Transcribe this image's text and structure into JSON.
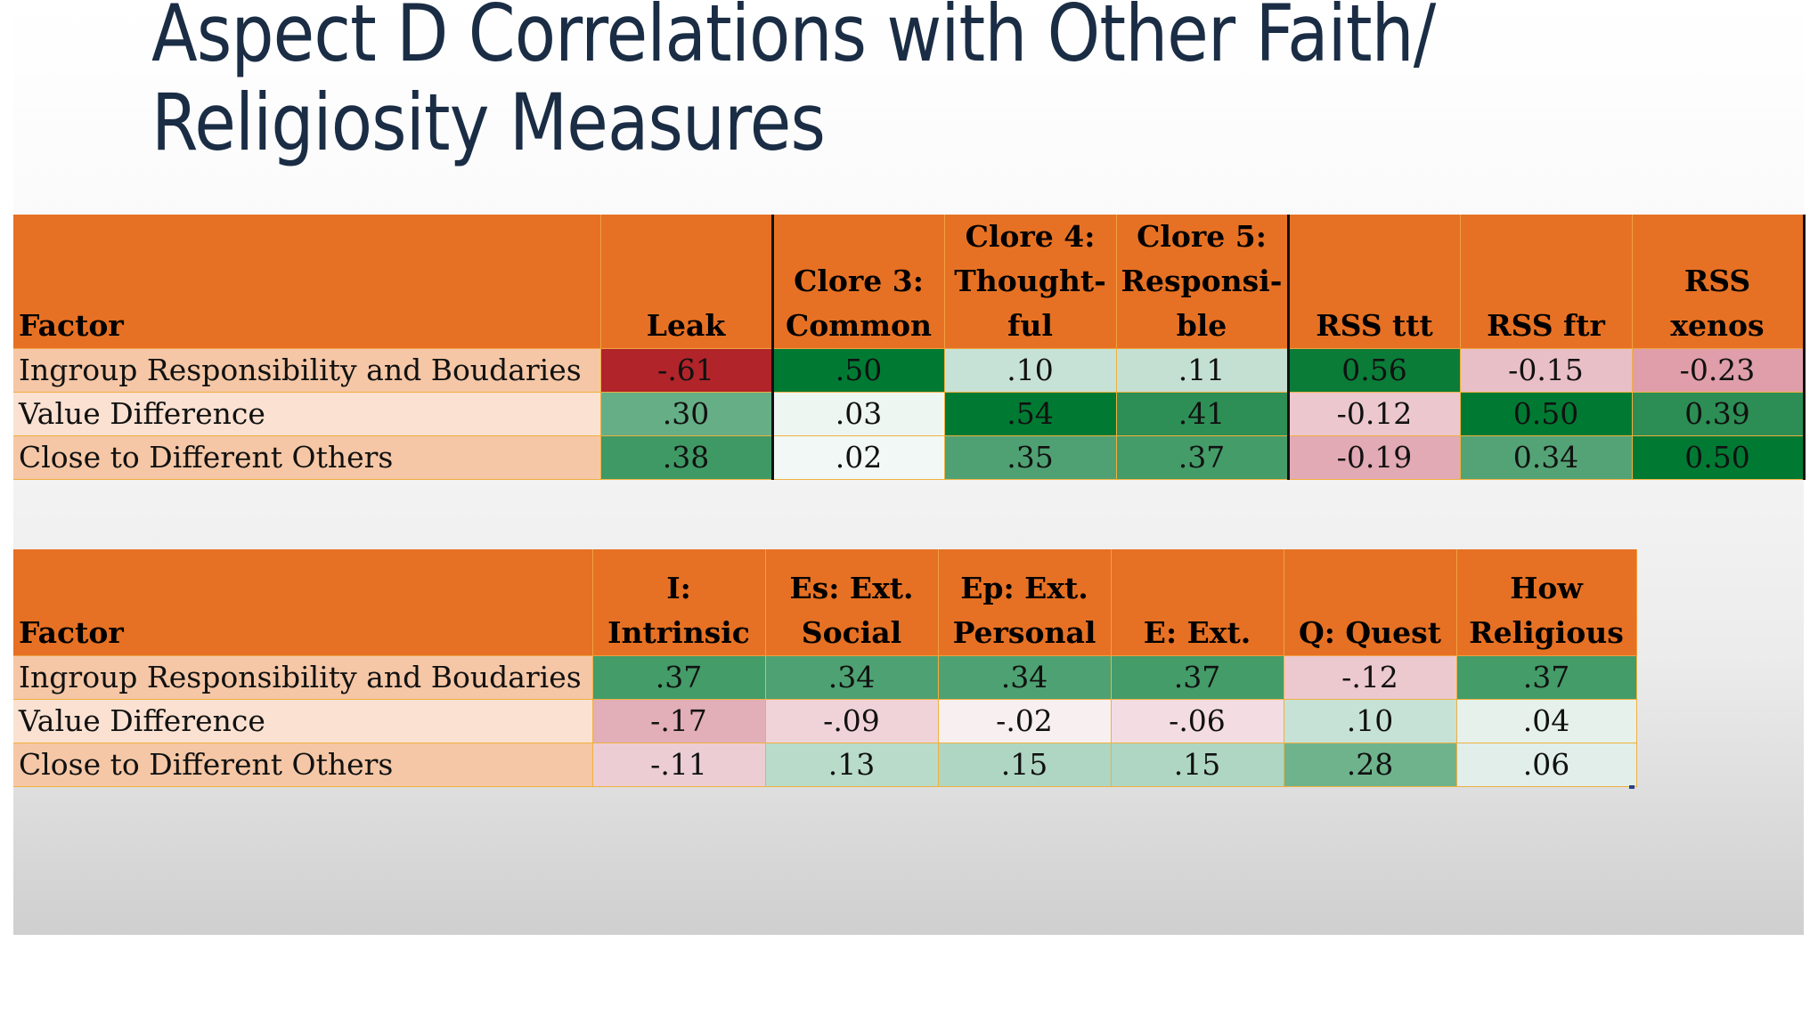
{
  "title": {
    "line1": "Aspect D Correlations with Other Faith/",
    "line2": "Religiosity Measures"
  },
  "table1": {
    "headers": {
      "factor": "Factor",
      "leak": "Leak",
      "clore3": "Clore 3: Common",
      "clore4": "Clore 4: Thought-ful",
      "clore5": "Clore 5: Responsi-ble",
      "rss_ttt": "RSS ttt",
      "rss_ftr": "RSS ftr",
      "rss_xenos": "RSS xenos"
    },
    "rows": [
      {
        "label": "Ingroup Responsibility and Boudaries",
        "leak": "-.61",
        "clore3": ".50",
        "clore4": ".10",
        "clore5": ".11",
        "rss_ttt": "0.56",
        "rss_ftr": "-0.15",
        "rss_xenos": "-0.23"
      },
      {
        "label": "Value Difference",
        "leak": ".30",
        "clore3": ".03",
        "clore4": ".54",
        "clore5": ".41",
        "rss_ttt": "-0.12",
        "rss_ftr": "0.50",
        "rss_xenos": "0.39"
      },
      {
        "label": "Close to Different Others",
        "leak": ".38",
        "clore3": ".02",
        "clore4": ".35",
        "clore5": ".37",
        "rss_ttt": "-0.19",
        "rss_ftr": "0.34",
        "rss_xenos": "0.50"
      }
    ]
  },
  "table2": {
    "headers": {
      "factor": "Factor",
      "intrinsic": "I: Intrinsic",
      "es": "Es: Ext. Social",
      "ep": "Ep: Ext. Personal",
      "e": "E: Ext.",
      "q": "Q: Quest",
      "how": "How Religious"
    },
    "rows": [
      {
        "label": "Ingroup Responsibility and Boudaries",
        "intrinsic": ".37",
        "es": ".34",
        "ep": ".34",
        "e": ".37",
        "q": "-.12",
        "how": ".37"
      },
      {
        "label": "Value Difference",
        "intrinsic": "-.17",
        "es": "-.09",
        "ep": "-.02",
        "e": "-.06",
        "q": ".10",
        "how": ".04"
      },
      {
        "label": "Close to Different Others",
        "intrinsic": "-.11",
        "es": ".13",
        "ep": ".15",
        "e": ".15",
        "q": ".28",
        "how": ".06"
      }
    ]
  },
  "colors": {
    "header_orange": "#e67124",
    "title_navy": "#1a2d45",
    "strong_green": "#007a33",
    "strong_red": "#b0242a"
  }
}
